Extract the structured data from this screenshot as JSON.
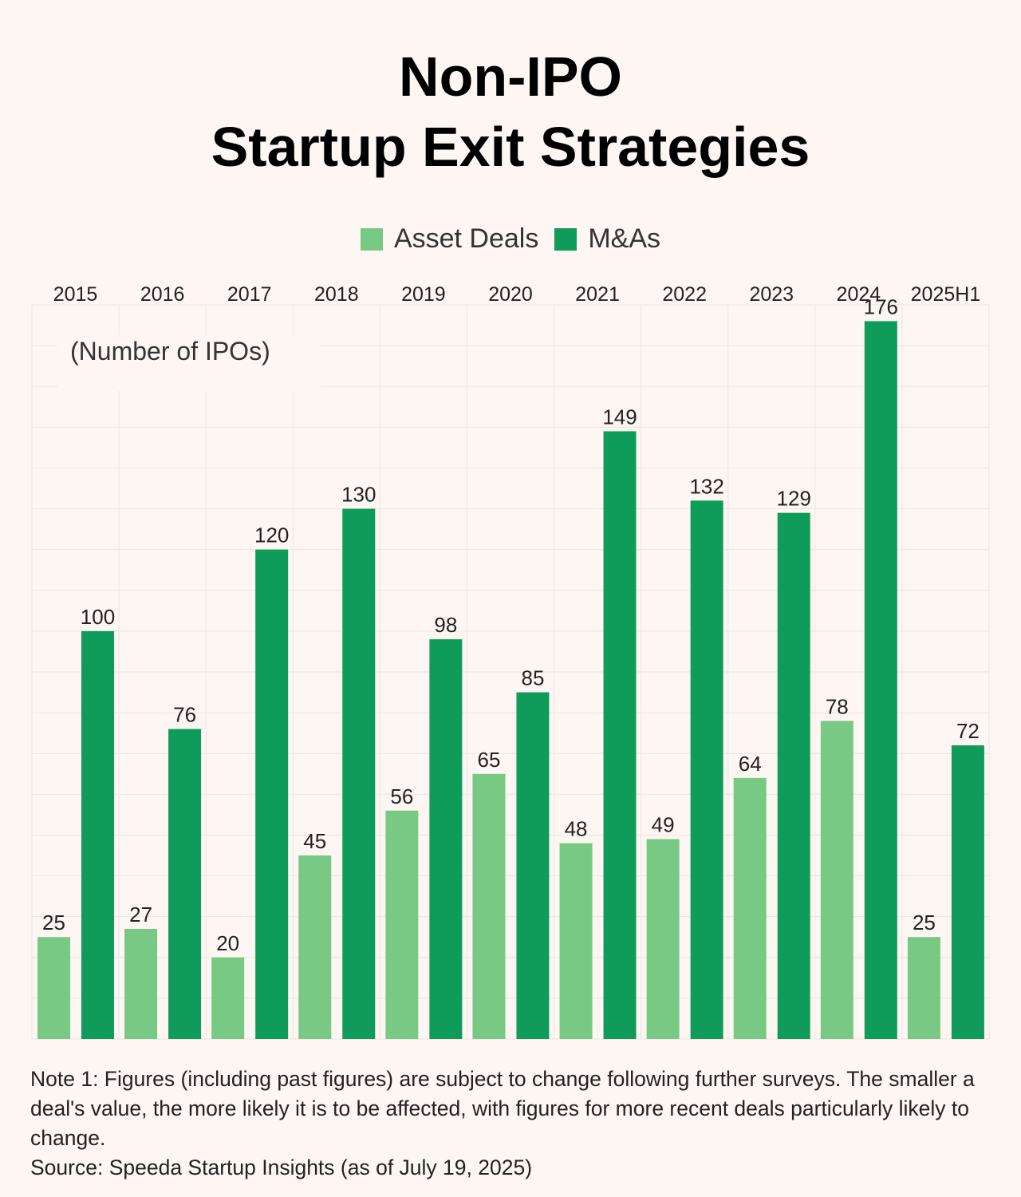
{
  "title": [
    "Non-IPO",
    "Startup Exit Strategies"
  ],
  "legend": [
    {
      "label": "Asset Deals",
      "color": "#78c983"
    },
    {
      "label": "M&As",
      "color": "#0f9b5a"
    }
  ],
  "unit_label": "(Number of IPOs)",
  "notes": [
    "Note 1: Figures (including past figures) are subject to change following further surveys. The smaller a deal's value, the more likely it is to be affected, with figures for more recent deals particularly likely to change.",
    "Source: Speeda Startup Insights (as of July 19, 2025)"
  ],
  "chart_data": {
    "type": "bar",
    "title": "Non-IPO Startup Exit Strategies",
    "categories": [
      "2015",
      "2016",
      "2017",
      "2018",
      "2019",
      "2020",
      "2021",
      "2022",
      "2023",
      "2024",
      "2025H1"
    ],
    "series": [
      {
        "name": "Asset Deals",
        "color": "#78c983",
        "values": [
          25,
          27,
          20,
          45,
          56,
          65,
          48,
          49,
          64,
          78,
          25
        ]
      },
      {
        "name": "M&As",
        "color": "#0f9b5a",
        "values": [
          100,
          76,
          120,
          130,
          98,
          85,
          149,
          132,
          129,
          176,
          72
        ]
      }
    ],
    "ylim": [
      0,
      180
    ],
    "legend_position": "top-center",
    "category_labels_position": "top",
    "grid": true
  }
}
